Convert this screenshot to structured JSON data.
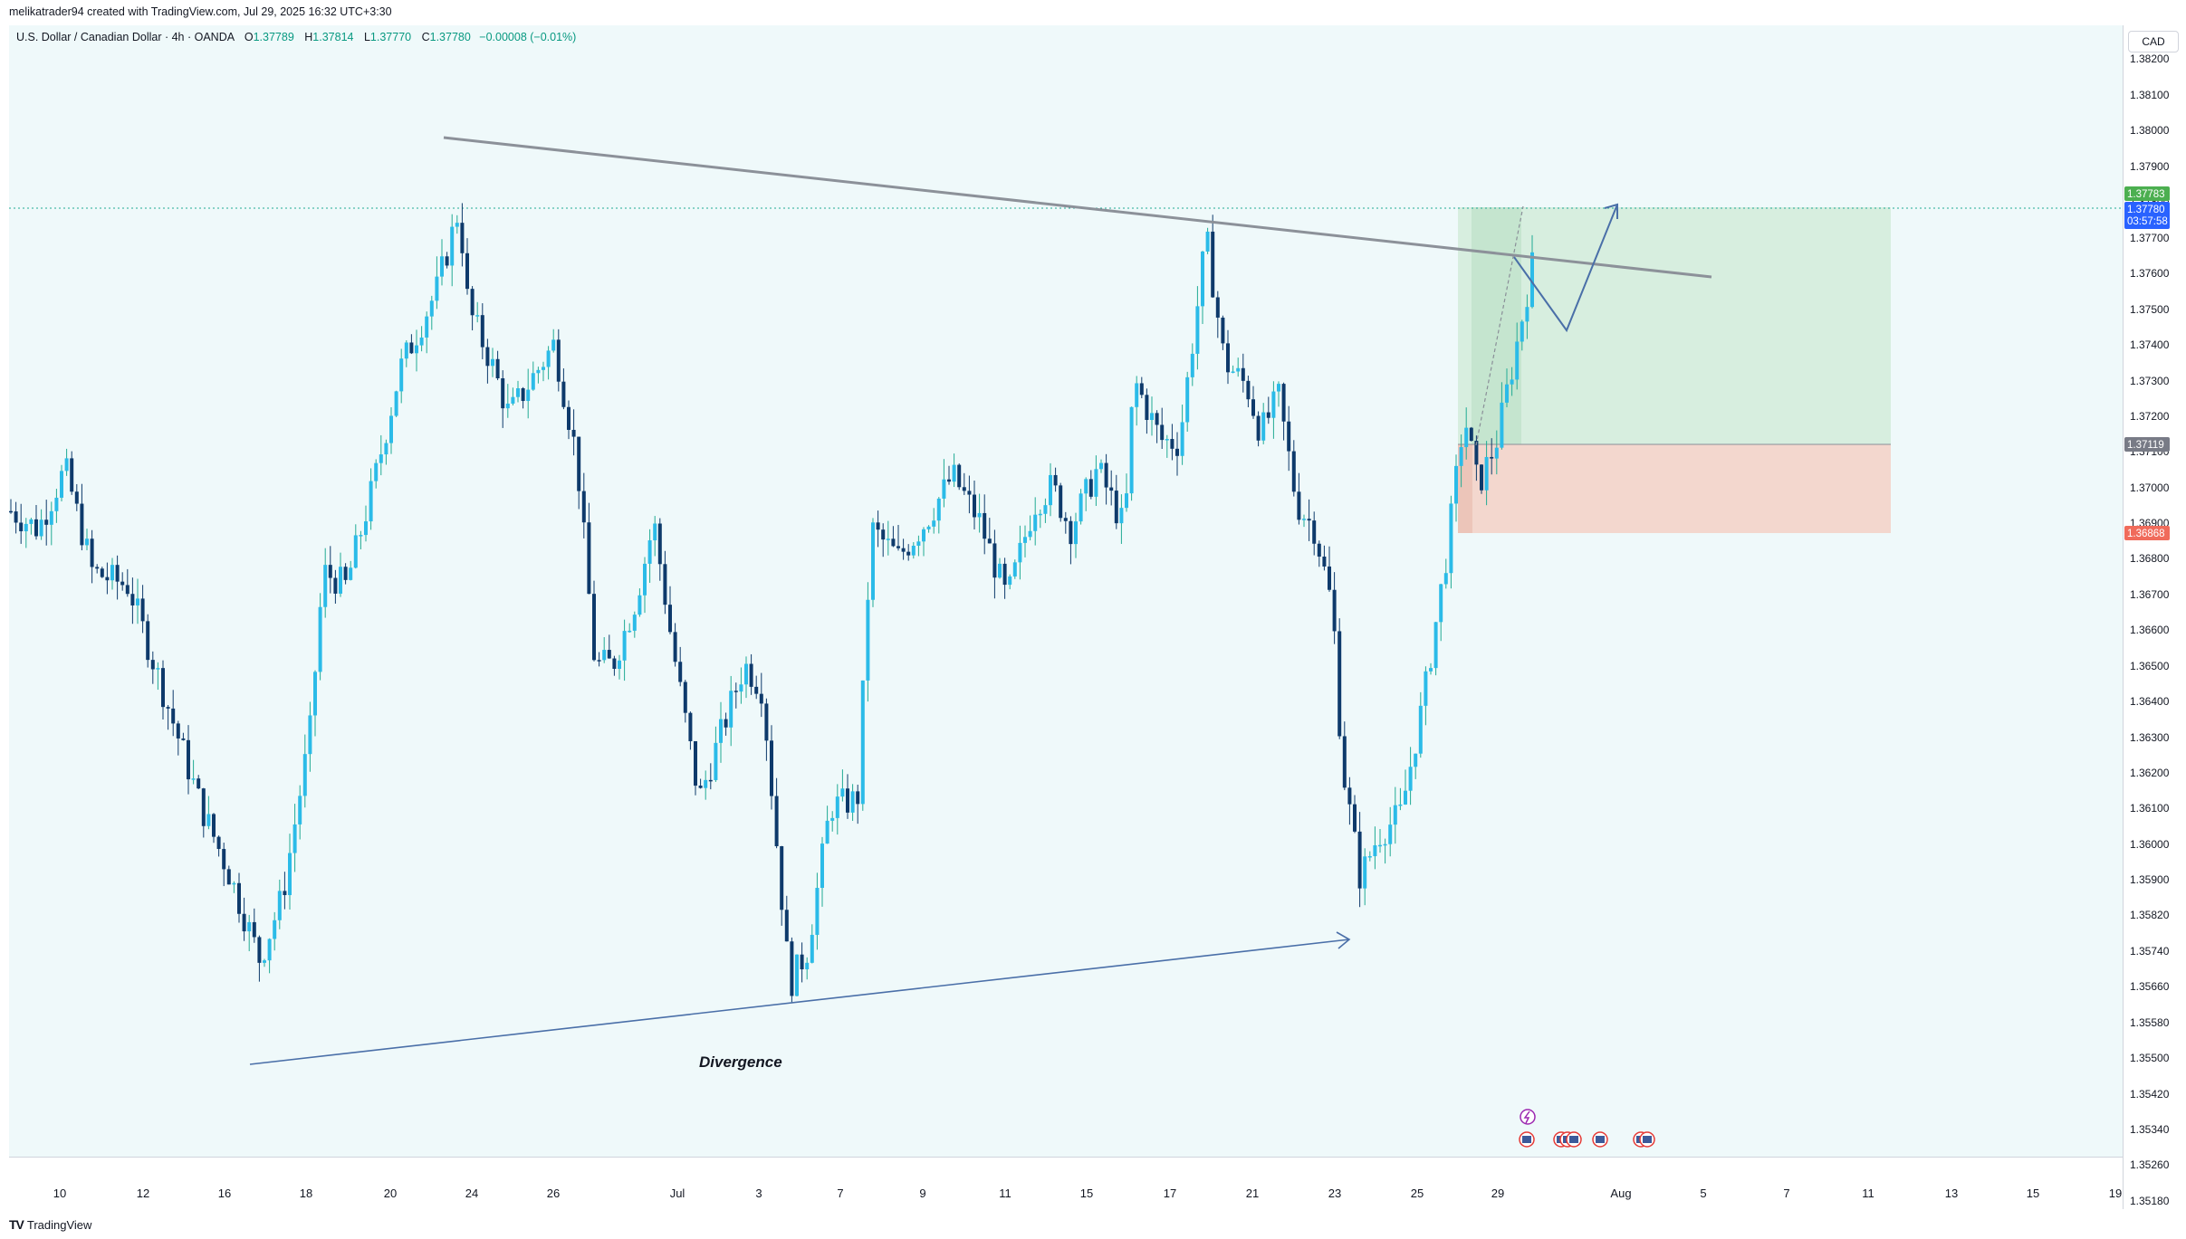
{
  "header": {
    "created_by": "melikatrader94 created with TradingView.com, Jul 29, 2025 16:32 UTC+3:30"
  },
  "legend": {
    "symbol": "U.S. Dollar / Canadian Dollar · 4h · OANDA",
    "open_key": "O",
    "open": "1.37789",
    "high_key": "H",
    "high": "1.37814",
    "low_key": "L",
    "low": "1.37770",
    "close_key": "C",
    "close": "1.37780",
    "change": "−0.00008 (−0.01%)"
  },
  "currency_badge": "CAD",
  "footer": {
    "brand": "TradingView"
  },
  "colors": {
    "up": "#22ab94",
    "up_body": "#2bbbe8",
    "down": "#0e3a6b",
    "trendline": "#8c9199",
    "arrow": "#4a6fa8",
    "profit_zone": "#cfe9d6",
    "loss_zone": "#f3d3c9",
    "price_label": "#2962ff",
    "bull_label": "#4caf50",
    "bear_label": "#f06b5b"
  },
  "chart_data": {
    "type": "candlestick",
    "symbol": "USDCAD",
    "interval": "4h",
    "y_ticks": [
      "1.38200",
      "1.38100",
      "1.38000",
      "1.37900",
      "1.37800",
      "1.37700",
      "1.37600",
      "1.37500",
      "1.37400",
      "1.37300",
      "1.37200",
      "1.37100",
      "1.37000",
      "1.36900",
      "1.36800",
      "1.36700",
      "1.36600",
      "1.36500",
      "1.36400",
      "1.36300",
      "1.36200",
      "1.36100",
      "1.36000",
      "1.35900",
      "1.35820",
      "1.35740",
      "1.35660",
      "1.35580",
      "1.35500",
      "1.35420",
      "1.35340",
      "1.35260",
      "1.35180"
    ],
    "x_ticks": [
      "10",
      "12",
      "16",
      "18",
      "20",
      "24",
      "26",
      "Jul",
      "3",
      "7",
      "9",
      "11",
      "15",
      "17",
      "21",
      "23",
      "25",
      "29",
      "Aug",
      "5",
      "7",
      "11",
      "13",
      "15",
      "19"
    ],
    "price_labels": [
      {
        "label": "take-profit",
        "value": "1.37783"
      },
      {
        "label": "last-price",
        "value": "1.37780",
        "extra": "03:57:58"
      },
      {
        "label": "entry",
        "value": "1.37119"
      },
      {
        "label": "stop-loss",
        "value": "1.36868"
      }
    ],
    "annotations": {
      "divergence_text": "Divergence"
    },
    "swing_points": [
      {
        "x": "Jun 16",
        "y": 1.3567
      },
      {
        "x": "Jun 23",
        "y": 1.3796
      },
      {
        "x": "Jul 4",
        "y": 1.3557
      },
      {
        "x": "Jul 17",
        "y": 1.3772
      },
      {
        "x": "Jul 23",
        "y": 1.3578
      },
      {
        "x": "Jul 29",
        "y": 1.3778
      }
    ]
  }
}
